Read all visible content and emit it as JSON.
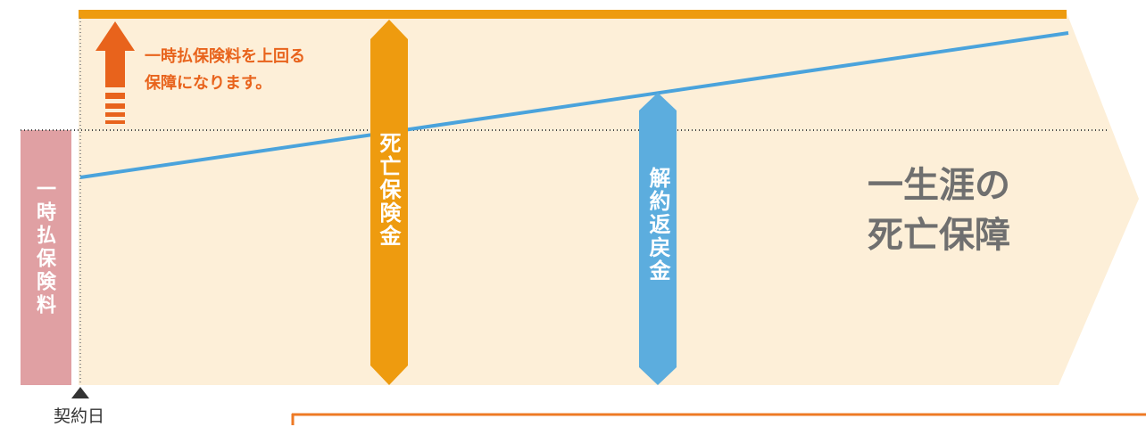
{
  "colors": {
    "coverage_area": "#fdefd8",
    "coverage_bar": "#ee9b0f",
    "premium_block": "#e0a0a3",
    "death_benefit": "#ee9b0f",
    "surrender_value": "#5cadde",
    "surrender_line": "#4aa3dc",
    "note_text": "#e8631c",
    "heading_text": "#6f6f6f",
    "frame_line": "#ee7a25"
  },
  "labels": {
    "premium": "一時払保険料",
    "death_benefit": "死亡保険金",
    "surrender_value": "解約返戻金",
    "note_line1": "一時払保険料を上回る",
    "note_line2": "保障になります。",
    "lifetime_line1": "一生涯の",
    "lifetime_line2": "死亡保障",
    "contract_day": "契約日"
  },
  "icons": {
    "up_arrow": "arrow-up-icon",
    "marker": "triangle-up-icon"
  }
}
